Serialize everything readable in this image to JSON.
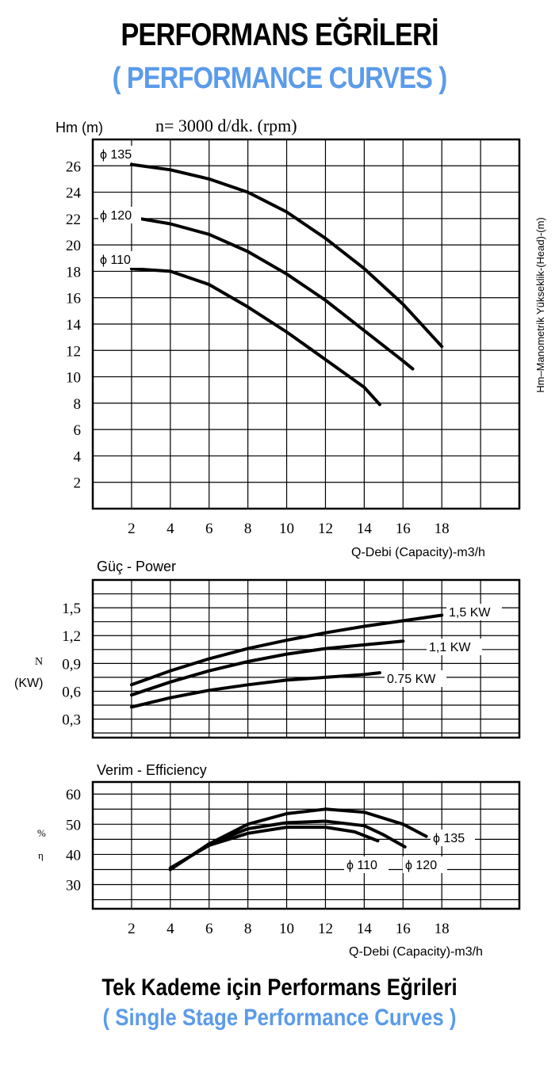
{
  "header": {
    "title": "PERFORMANS EĞRİLERİ",
    "subtitle": "( PERFORMANCE CURVES )"
  },
  "footer": {
    "title": "Tek Kademe için Performans Eğrileri",
    "subtitle": "( Single Stage Performance Curves )"
  },
  "colors": {
    "accent": "#5b9bea",
    "line": "#000000"
  },
  "chart_data": [
    {
      "type": "line",
      "title": "n= 3000 d/dk. (rpm)",
      "ylabel": "Hm (m)",
      "ylabel_right": "Hm–Manometrik Yükseklik-(Head)-(m)",
      "xlabel": "Q-Debi (Capacity)-m3/h",
      "x_ticks": [
        "2",
        "4",
        "6",
        "8",
        "10",
        "12",
        "14",
        "16",
        "18"
      ],
      "y_ticks": [
        "2",
        "4",
        "6",
        "8",
        "10",
        "12",
        "14",
        "16",
        "18",
        "20",
        "22",
        "24",
        "26"
      ],
      "xlim": [
        0,
        22
      ],
      "ylim": [
        0,
        28
      ],
      "grid": true,
      "series": [
        {
          "name": "ϕ 135",
          "x": [
            2,
            4,
            6,
            8,
            10,
            12,
            14,
            16,
            18
          ],
          "y": [
            26.1,
            25.7,
            25,
            24,
            22.5,
            20.5,
            18.2,
            15.5,
            12.3
          ]
        },
        {
          "name": "ϕ 120",
          "x": [
            2,
            4,
            6,
            8,
            10,
            12,
            14,
            16,
            16.5
          ],
          "y": [
            22.1,
            21.6,
            20.8,
            19.5,
            17.8,
            15.8,
            13.5,
            11.2,
            10.6
          ]
        },
        {
          "name": "ϕ 110",
          "x": [
            2,
            4,
            6,
            8,
            10,
            12,
            14,
            14.8
          ],
          "y": [
            18.2,
            18,
            17,
            15.3,
            13.4,
            11.3,
            9.2,
            7.9
          ]
        }
      ]
    },
    {
      "type": "line",
      "title": "Güç - Power",
      "ylabel": "N",
      "ylabel2": "(KW)",
      "y_ticks": [
        "0,3",
        "0,6",
        "0,9",
        "1,2",
        "1,5"
      ],
      "xlim": [
        0,
        22
      ],
      "ylim": [
        0.1,
        1.8
      ],
      "grid": true,
      "series": [
        {
          "name": "1,5 KW",
          "x": [
            2,
            4,
            6,
            8,
            10,
            12,
            14,
            16,
            18
          ],
          "y": [
            0.67,
            0.82,
            0.95,
            1.06,
            1.15,
            1.23,
            1.3,
            1.36,
            1.42
          ]
        },
        {
          "name": "1,1 KW",
          "x": [
            2,
            4,
            6,
            8,
            10,
            12,
            14,
            16
          ],
          "y": [
            0.56,
            0.7,
            0.82,
            0.92,
            1.0,
            1.06,
            1.1,
            1.14
          ]
        },
        {
          "name": "0.75 KW",
          "x": [
            2,
            4,
            6,
            8,
            10,
            12,
            14,
            14.8
          ],
          "y": [
            0.43,
            0.53,
            0.61,
            0.67,
            0.72,
            0.75,
            0.78,
            0.8
          ]
        }
      ]
    },
    {
      "type": "line",
      "title": "Verim - Efficiency",
      "ylabel": "%",
      "ylabel2": "η",
      "xlabel": "Q-Debi (Capacity)-m3/h",
      "x_ticks": [
        "2",
        "4",
        "6",
        "8",
        "10",
        "12",
        "14",
        "16",
        "18"
      ],
      "y_ticks": [
        "30",
        "40",
        "50",
        "60"
      ],
      "xlim": [
        0,
        22
      ],
      "ylim": [
        22,
        64
      ],
      "grid": true,
      "series": [
        {
          "name": "ϕ 135",
          "x": [
            4,
            6,
            8,
            10,
            12,
            14,
            16,
            17.2
          ],
          "y": [
            35,
            43.5,
            50,
            53.5,
            55,
            54,
            50,
            46
          ]
        },
        {
          "name": "ϕ 120",
          "x": [
            4,
            6,
            8,
            10,
            12,
            14,
            15,
            16.1
          ],
          "y": [
            35,
            43.5,
            48.5,
            50.5,
            51,
            49.5,
            46.5,
            42.5
          ]
        },
        {
          "name": "ϕ 110",
          "x": [
            4,
            6,
            8,
            10,
            12,
            13.5,
            14.7
          ],
          "y": [
            35.5,
            43,
            47,
            49,
            49,
            47.5,
            44.5
          ]
        }
      ]
    }
  ]
}
